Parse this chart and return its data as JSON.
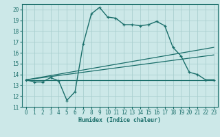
{
  "xlabel": "Humidex (Indice chaleur)",
  "background_color": "#cce8e8",
  "grid_color": "#aacfcf",
  "line_color": "#1a6e6a",
  "xlim": [
    -0.5,
    23.5
  ],
  "ylim": [
    11,
    20.5
  ],
  "yticks": [
    11,
    12,
    13,
    14,
    15,
    16,
    17,
    18,
    19,
    20
  ],
  "xticks": [
    0,
    1,
    2,
    3,
    4,
    5,
    6,
    7,
    8,
    9,
    10,
    11,
    12,
    13,
    14,
    15,
    16,
    17,
    18,
    19,
    20,
    21,
    22,
    23
  ],
  "series1_x": [
    0,
    1,
    2,
    3,
    4,
    5,
    6,
    7,
    8,
    9,
    10,
    11,
    12,
    13,
    14,
    15,
    16,
    17,
    18,
    19,
    20,
    21,
    22,
    23
  ],
  "series1_y": [
    13.5,
    13.3,
    13.3,
    13.7,
    13.4,
    11.6,
    12.4,
    16.8,
    19.6,
    20.2,
    19.3,
    19.2,
    18.6,
    18.6,
    18.5,
    18.6,
    18.9,
    18.5,
    16.5,
    15.7,
    14.2,
    14.0,
    13.5,
    13.5
  ],
  "series2_x": [
    0,
    23
  ],
  "series2_y": [
    13.5,
    13.5
  ],
  "series3_x": [
    0,
    23
  ],
  "series3_y": [
    13.5,
    16.5
  ],
  "series4_x": [
    0,
    23
  ],
  "series4_y": [
    13.5,
    15.8
  ]
}
